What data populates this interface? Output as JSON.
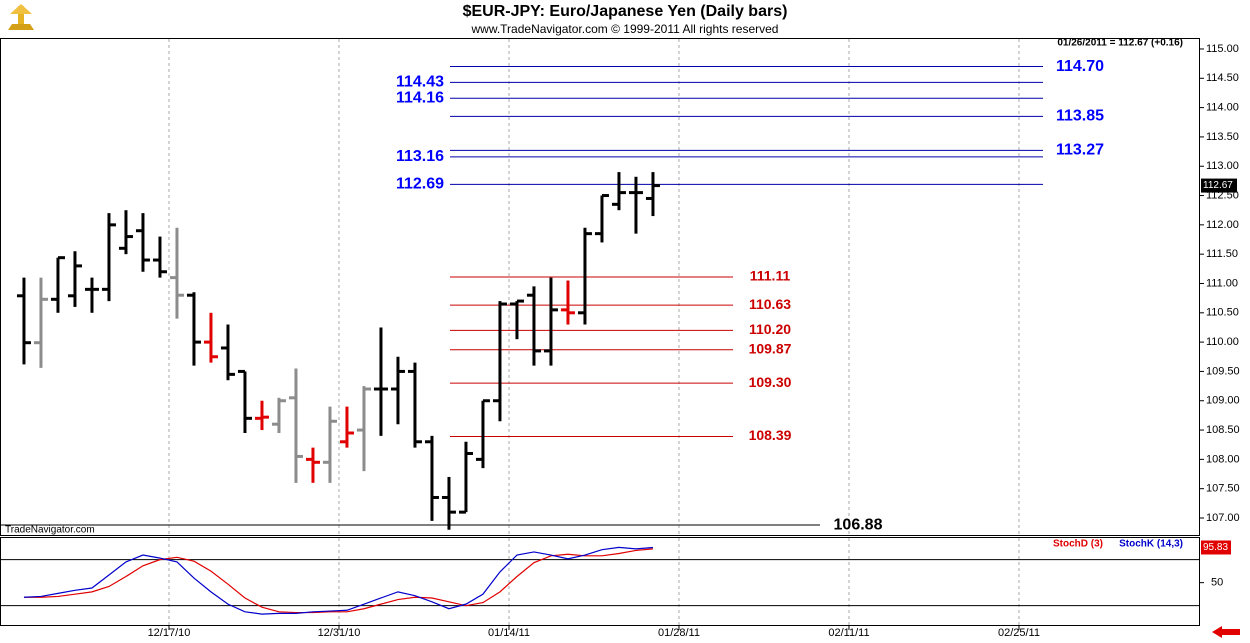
{
  "chart_data": [
    {
      "type": "ohlc",
      "title": "$EUR-JPY:  Euro/Japanese Yen  (Daily bars)",
      "subtitle": "www.TradeNavigator.com © 1999-2011 All rights reserved",
      "info": "01/26/2011 = 112.67 (+0.16)",
      "watermark": "TradeNavigator.com",
      "x": [
        0,
        1,
        2,
        3,
        4,
        5,
        6,
        7,
        8,
        9,
        10,
        11,
        12,
        13,
        14,
        15,
        16,
        17,
        18,
        19,
        20,
        21,
        22,
        23,
        24,
        25,
        26,
        27,
        28,
        29,
        30,
        31,
        32,
        33,
        34,
        35,
        36,
        37
      ],
      "open": [
        110.79,
        109.99,
        110.73,
        110.79,
        110.9,
        110.9,
        111.6,
        111.9,
        111.4,
        111.1,
        110.8,
        110.0,
        109.9,
        109.5,
        108.7,
        108.6,
        109.05,
        108.0,
        107.95,
        108.3,
        108.5,
        109.2,
        109.2,
        109.5,
        108.3,
        107.35,
        107.1,
        108.0,
        109.0,
        110.65,
        110.8,
        109.85,
        110.55,
        110.5,
        111.85,
        112.35,
        112.55,
        112.45
      ],
      "high": [
        111.1,
        111.1,
        111.44,
        111.55,
        111.1,
        112.2,
        112.25,
        112.2,
        111.8,
        111.95,
        110.85,
        110.5,
        110.3,
        109.5,
        109.0,
        109.05,
        109.55,
        108.2,
        108.9,
        108.9,
        109.25,
        110.25,
        109.75,
        109.65,
        108.4,
        107.7,
        108.3,
        109.0,
        110.7,
        110.7,
        110.95,
        111.1,
        111.05,
        111.95,
        112.5,
        112.9,
        112.82,
        112.9
      ],
      "low": [
        109.62,
        109.56,
        110.5,
        110.6,
        110.5,
        110.7,
        111.5,
        111.2,
        111.1,
        110.4,
        109.6,
        109.65,
        109.35,
        108.45,
        108.5,
        108.45,
        107.6,
        107.6,
        107.6,
        108.2,
        107.8,
        108.4,
        108.6,
        108.2,
        106.95,
        106.8,
        107.1,
        107.85,
        108.65,
        110.05,
        109.6,
        109.6,
        110.3,
        110.3,
        111.7,
        112.25,
        111.85,
        112.15
      ],
      "close": [
        109.99,
        110.73,
        111.44,
        111.3,
        110.9,
        112.0,
        111.8,
        111.4,
        111.2,
        110.8,
        110.0,
        109.75,
        109.45,
        108.7,
        108.72,
        109.0,
        108.05,
        107.95,
        108.65,
        108.45,
        109.2,
        109.2,
        109.5,
        108.3,
        107.35,
        107.1,
        108.1,
        109.0,
        110.65,
        110.7,
        109.85,
        110.55,
        110.5,
        111.85,
        112.5,
        112.55,
        112.55,
        112.67
      ],
      "colors": [
        "#000000",
        "#8c8c8c",
        "#000000",
        "#000000",
        "#000000",
        "#000000",
        "#000000",
        "#000000",
        "#000000",
        "#8c8c8c",
        "#000000",
        "#e00000",
        "#000000",
        "#000000",
        "#e00000",
        "#8c8c8c",
        "#8c8c8c",
        "#e00000",
        "#8c8c8c",
        "#e00000",
        "#8c8c8c",
        "#000000",
        "#000000",
        "#000000",
        "#000000",
        "#000000",
        "#000000",
        "#000000",
        "#000000",
        "#000000",
        "#000000",
        "#000000",
        "#e00000",
        "#000000",
        "#000000",
        "#000000",
        "#000000",
        "#000000"
      ],
      "levels": [
        {
          "value": 114.7,
          "label": "114.70",
          "color": "#0000ff",
          "label_side": "right"
        },
        {
          "value": 114.43,
          "label": "114.43",
          "color": "#0000ff",
          "label_side": "left"
        },
        {
          "value": 114.16,
          "label": "114.16",
          "color": "#0000ff",
          "label_side": "left"
        },
        {
          "value": 113.85,
          "label": "113.85",
          "color": "#0000ff",
          "label_side": "right"
        },
        {
          "value": 113.27,
          "label": "113.27",
          "color": "#0000ff",
          "label_side": "right"
        },
        {
          "value": 113.16,
          "label": "113.16",
          "color": "#0000ff",
          "label_side": "left"
        },
        {
          "value": 112.69,
          "label": "112.69",
          "color": "#0000ff",
          "label_side": "left"
        },
        {
          "value": 111.11,
          "label": "111.11",
          "color": "#cc0000",
          "label_side": "right"
        },
        {
          "value": 110.63,
          "label": "110.63",
          "color": "#cc0000",
          "label_side": "right"
        },
        {
          "value": 110.2,
          "label": "110.20",
          "color": "#cc0000",
          "label_side": "right"
        },
        {
          "value": 109.87,
          "label": "109.87",
          "color": "#cc0000",
          "label_side": "right"
        },
        {
          "value": 109.3,
          "label": "109.30",
          "color": "#cc0000",
          "label_side": "right"
        },
        {
          "value": 108.39,
          "label": "108.39",
          "color": "#cc0000",
          "label_side": "right"
        },
        {
          "value": 106.88,
          "label": "106.88",
          "color": "#000000",
          "label_side": "right"
        }
      ],
      "xlim": [
        -1.41,
        69.12
      ],
      "ylim": [
        106.71,
        115.17
      ],
      "yticks": [
        {
          "value": 107,
          "label": "107.00"
        },
        {
          "value": 107.5,
          "label": "107.50"
        },
        {
          "value": 108,
          "label": "108.00"
        },
        {
          "value": 108.5,
          "label": "108.50"
        },
        {
          "value": 109,
          "label": "109.00"
        },
        {
          "value": 109.5,
          "label": "109.50"
        },
        {
          "value": 110,
          "label": "110.00"
        },
        {
          "value": 110.5,
          "label": "110.50"
        },
        {
          "value": 111,
          "label": "111.00"
        },
        {
          "value": 111.5,
          "label": "111.50"
        },
        {
          "value": 112,
          "label": "112.00"
        },
        {
          "value": 112.5,
          "label": "112.50"
        },
        {
          "value": 113,
          "label": "113.00"
        },
        {
          "value": 113.5,
          "label": "113.50"
        },
        {
          "value": 114,
          "label": "114.00"
        },
        {
          "value": 114.5,
          "label": "114.50"
        },
        {
          "value": 115,
          "label": "115.00"
        }
      ]
    },
    {
      "type": "line",
      "x": [
        0,
        1,
        2,
        3,
        4,
        5,
        6,
        7,
        8,
        9,
        10,
        11,
        12,
        13,
        14,
        15,
        16,
        17,
        18,
        19,
        20,
        21,
        22,
        23,
        24,
        25,
        26,
        27,
        28,
        29,
        30,
        31,
        32,
        33,
        34,
        35,
        36,
        37
      ],
      "series": [
        {
          "name": "StochD (3)",
          "color": "#e00000",
          "values": [
            31,
            31,
            32,
            35,
            38,
            45,
            58,
            72,
            80,
            83,
            78,
            65,
            48,
            30,
            18,
            12,
            11,
            11,
            12,
            12,
            16,
            22,
            28,
            31,
            30,
            25,
            20,
            24,
            38,
            58,
            76,
            85,
            87,
            85,
            85,
            88,
            92,
            94
          ]
        },
        {
          "name": "StochK (14,3)",
          "color": "#0000cc",
          "values": [
            31,
            32,
            36,
            40,
            43,
            60,
            77,
            86,
            82,
            77,
            56,
            38,
            22,
            12,
            9,
            10,
            10,
            12,
            13,
            14,
            22,
            30,
            38,
            33,
            25,
            16,
            22,
            35,
            64,
            86,
            90,
            86,
            81,
            86,
            93,
            96,
            94,
            95.83
          ]
        }
      ],
      "levels": [
        20,
        80
      ],
      "xlim": [
        -1.41,
        69.12
      ],
      "ylim": [
        -6.5,
        108.2
      ],
      "yticks": [
        50
      ],
      "xticks": [
        {
          "value": 8.53,
          "label": "12/17/10"
        },
        {
          "value": 18.53,
          "label": "12/31/10"
        },
        {
          "value": 28.53,
          "label": "01/14/11"
        },
        {
          "value": 38.53,
          "label": "01/28/11"
        },
        {
          "value": 48.53,
          "label": "02/11/11"
        },
        {
          "value": 58.53,
          "label": "02/25/11"
        }
      ]
    }
  ]
}
